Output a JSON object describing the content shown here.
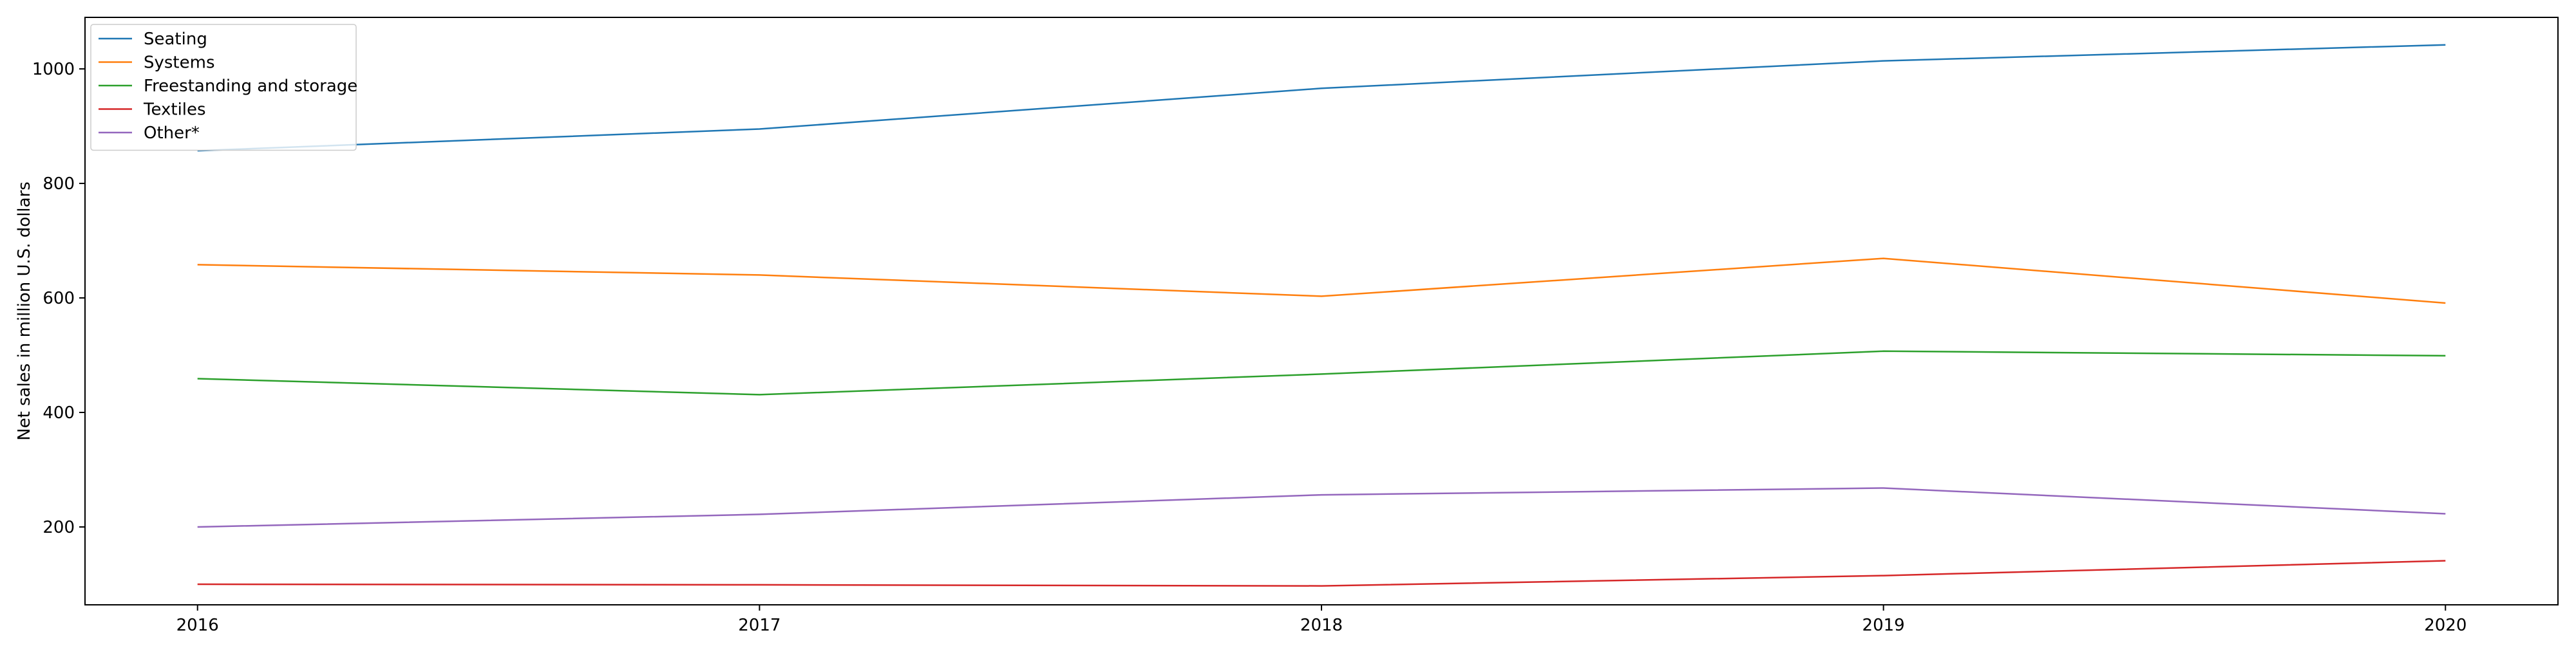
{
  "chart_data": {
    "type": "line",
    "x": [
      "2016",
      "2017",
      "2018",
      "2019",
      "2020"
    ],
    "series": [
      {
        "name": "Seating",
        "color": "#1f77b4",
        "values": [
          857,
          895,
          966,
          1014,
          1042
        ]
      },
      {
        "name": "Systems",
        "color": "#ff7f0e",
        "values": [
          658,
          640,
          603,
          669,
          591
        ]
      },
      {
        "name": "Freestanding and storage",
        "color": "#2ca02c",
        "values": [
          459,
          431,
          467,
          507,
          499
        ]
      },
      {
        "name": "Textiles",
        "color": "#d62728",
        "values": [
          100,
          99,
          97,
          115,
          141
        ]
      },
      {
        "name": "Other*",
        "color": "#9467bd",
        "values": [
          200,
          222,
          256,
          268,
          223
        ]
      }
    ],
    "title": "",
    "xlabel": "",
    "ylabel": "Net sales in million U.S. dollars",
    "ylim": [
      64,
      1090
    ],
    "yticks": [
      200,
      400,
      600,
      800,
      1000
    ],
    "grid": false,
    "legend_position": "top-left"
  }
}
